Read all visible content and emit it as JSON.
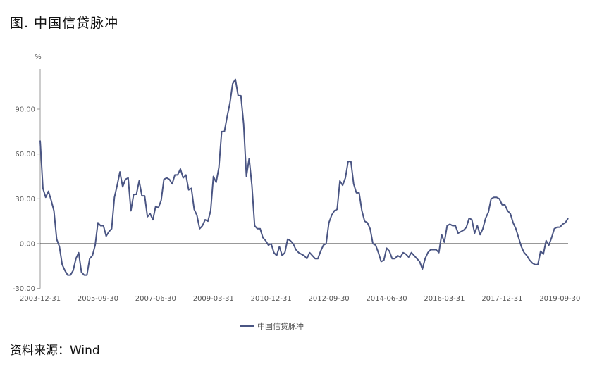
{
  "figure": {
    "title": "图. 中国信贷脉冲",
    "source": "资料来源：Wind"
  },
  "chart_data": {
    "type": "line",
    "ylabel": "%",
    "ylim": [
      -30,
      115
    ],
    "y_ticks": [
      -30,
      0,
      30,
      60,
      90
    ],
    "y_tick_labels": [
      "-30.00",
      "0.00",
      "30.00",
      "60.00",
      "90.00"
    ],
    "x_tick_labels": [
      "2003-12-31",
      "2005-09-30",
      "2007-06-30",
      "2009-03-31",
      "2010-12-31",
      "2012-09-30",
      "2014-06-30",
      "2016-03-31",
      "2017-12-31",
      "2019-09-30"
    ],
    "x_tick_index": [
      0,
      21,
      42,
      63,
      84,
      105,
      126,
      147,
      168,
      189
    ],
    "line_color": "#4a5583",
    "zero_line": true,
    "legend_position": "bottom",
    "series": [
      {
        "name": "中国信贷脉冲",
        "values": [
          69,
          37,
          31,
          35,
          29,
          22,
          3,
          -2,
          -14,
          -18,
          -21,
          -21,
          -18,
          -10,
          -6,
          -19,
          -21,
          -21,
          -10,
          -8,
          -1,
          14,
          12,
          12,
          5,
          8,
          10,
          31,
          39,
          48,
          38,
          43,
          44,
          22,
          33,
          33,
          42,
          32,
          32,
          18,
          20,
          16,
          25,
          24,
          29,
          43,
          44,
          43,
          40,
          46,
          46,
          50,
          44,
          46,
          36,
          37,
          23,
          19,
          10,
          12,
          16,
          15,
          22,
          45,
          41,
          51,
          75,
          75,
          85,
          94,
          107,
          110,
          99,
          99,
          80,
          45,
          57,
          39,
          12,
          10,
          10,
          4,
          2,
          -1,
          0,
          -6,
          -8,
          -2,
          -8,
          -6,
          3,
          2,
          0,
          -4,
          -6,
          -7,
          -8,
          -10,
          -6,
          -8,
          -10,
          -10,
          -5,
          -1,
          0,
          14,
          19,
          22,
          23,
          42,
          39,
          44,
          55,
          55,
          40,
          34,
          34,
          22,
          15,
          14,
          10,
          0,
          -1,
          -6,
          -12,
          -11,
          -3,
          -5,
          -10,
          -10,
          -8,
          -9,
          -6,
          -7,
          -9,
          -6,
          -8,
          -10,
          -12,
          -17,
          -10,
          -6,
          -4,
          -4,
          -4,
          -6,
          6,
          1,
          12,
          13,
          12,
          12,
          7,
          8,
          9,
          11,
          17,
          16,
          7,
          12,
          6,
          10,
          17,
          21,
          30,
          31,
          31,
          30,
          26,
          26,
          22,
          20,
          14,
          10,
          4,
          -2,
          -6,
          -8,
          -11,
          -13,
          -14,
          -14,
          -5,
          -7,
          2,
          -1,
          4,
          10,
          11,
          11,
          13,
          14,
          17
        ]
      }
    ]
  }
}
